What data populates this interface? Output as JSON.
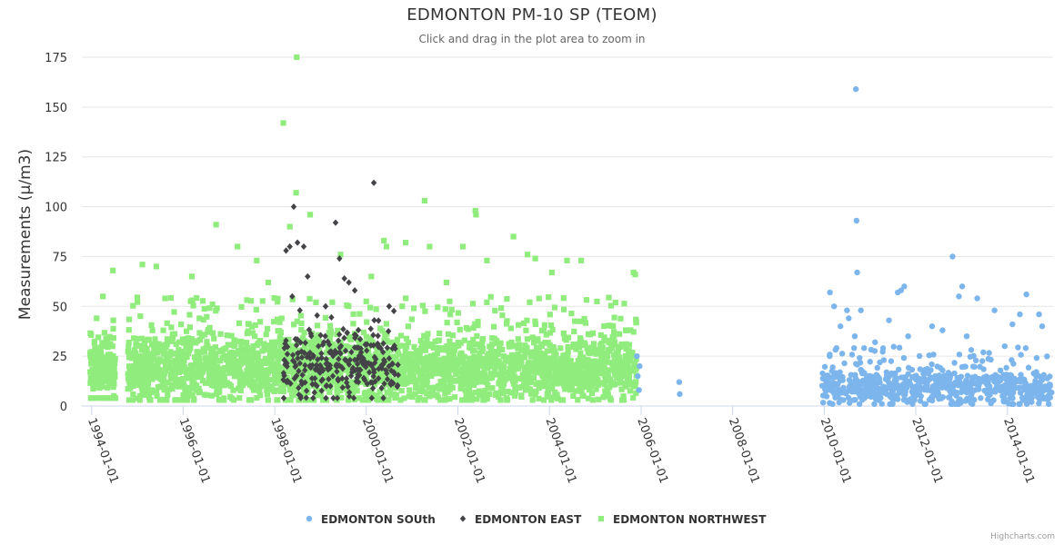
{
  "chart_data": {
    "type": "scatter",
    "title": "EDMONTON PM-10 SP (TEOM)",
    "subtitle": "Click and drag in the plot area to zoom in",
    "ylabel": "Measurements (µ/m3)",
    "xlabel": "",
    "ylim": [
      0,
      175
    ],
    "yticks": [
      0,
      25,
      50,
      75,
      100,
      125,
      150,
      175
    ],
    "xlim": [
      "1993-10-15",
      "2014-12-31"
    ],
    "xticks": [
      "1994-01-01",
      "1996-01-01",
      "1998-01-01",
      "2000-01-01",
      "2002-01-01",
      "2004-01-01",
      "2006-01-01",
      "2008-01-01",
      "2010-01-01",
      "2012-01-01",
      "2014-01-01"
    ],
    "grid": "horizontal",
    "legend_position": "bottom-center",
    "series": [
      {
        "name": "EDMONTON SOUth",
        "marker": "circle",
        "color": "#7cb5ec",
        "points": [
          [
            "2005-11-28",
            25
          ],
          [
            "2005-12-05",
            15
          ],
          [
            "2005-12-15",
            8
          ],
          [
            "2005-12-20",
            20
          ],
          [
            "2006-11-01",
            12
          ],
          [
            "2006-11-05",
            6
          ],
          [
            "2010-02-15",
            57
          ],
          [
            "2010-03-20",
            50
          ],
          [
            "2010-05-10",
            40
          ],
          [
            "2010-07-01",
            48
          ],
          [
            "2010-07-15",
            44
          ],
          [
            "2010-09-01",
            35
          ],
          [
            "2010-09-10",
            159
          ],
          [
            "2010-09-15",
            93
          ],
          [
            "2010-09-20",
            67
          ],
          [
            "2010-10-20",
            48
          ],
          [
            "2011-02-10",
            32
          ],
          [
            "2011-04-15",
            29
          ],
          [
            "2011-06-01",
            43
          ],
          [
            "2011-08-10",
            57
          ],
          [
            "2011-09-05",
            58
          ],
          [
            "2011-10-01",
            60
          ],
          [
            "2011-11-01",
            35
          ],
          [
            "2012-05-10",
            40
          ],
          [
            "2012-08-01",
            38
          ],
          [
            "2012-10-20",
            75
          ],
          [
            "2012-12-10",
            55
          ],
          [
            "2013-01-05",
            60
          ],
          [
            "2013-02-10",
            35
          ],
          [
            "2013-05-05",
            54
          ],
          [
            "2013-09-20",
            48
          ],
          [
            "2013-12-10",
            30
          ],
          [
            "2014-02-10",
            41
          ],
          [
            "2014-04-10",
            46
          ],
          [
            "2014-06-01",
            56
          ],
          [
            "2014-09-10",
            46
          ],
          [
            "2014-10-05",
            40
          ]
        ],
        "dense_ranges": [
          {
            "from": "2009-12-15",
            "to": "2014-12-25",
            "count": 700,
            "min": 1,
            "max": 30,
            "median": 9
          }
        ]
      },
      {
        "name": "EDMONTON EAST",
        "marker": "diamond",
        "color": "#434348",
        "points": [
          [
            "1998-04-01",
            78
          ],
          [
            "1998-05-01",
            80
          ],
          [
            "1998-06-01",
            100
          ],
          [
            "1998-07-01",
            82
          ],
          [
            "1998-08-20",
            80
          ],
          [
            "1998-09-20",
            65
          ],
          [
            "1999-05-01",
            92
          ],
          [
            "1999-06-01",
            74
          ],
          [
            "1999-07-10",
            64
          ],
          [
            "1999-08-15",
            62
          ],
          [
            "1999-10-01",
            58
          ],
          [
            "2000-03-01",
            112
          ],
          [
            "2000-07-01",
            50
          ],
          [
            "1998-05-20",
            55
          ],
          [
            "1998-07-20",
            48
          ],
          [
            "1999-02-10",
            50
          ]
        ],
        "dense_ranges": [
          {
            "from": "1998-03-01",
            "to": "2000-09-15",
            "count": 260,
            "min": 4,
            "max": 48,
            "median": 20
          }
        ]
      },
      {
        "name": "EDMONTON NORTHWEST",
        "marker": "square",
        "color": "#90ed7d",
        "points": [
          [
            "1994-06-20",
            68
          ],
          [
            "1994-02-10",
            44
          ],
          [
            "1994-04-01",
            55
          ],
          [
            "1995-02-10",
            71
          ],
          [
            "1995-06-01",
            70
          ],
          [
            "1995-08-10",
            54
          ],
          [
            "1996-03-10",
            65
          ],
          [
            "1996-09-20",
            91
          ],
          [
            "1997-03-10",
            80
          ],
          [
            "1997-08-10",
            73
          ],
          [
            "1998-03-10",
            142
          ],
          [
            "1998-06-25",
            175
          ],
          [
            "1998-06-20",
            107
          ],
          [
            "1998-05-01",
            90
          ],
          [
            "1998-10-10",
            96
          ],
          [
            "1999-06-10",
            76
          ],
          [
            "2000-05-20",
            83
          ],
          [
            "2000-06-10",
            80
          ],
          [
            "2000-11-10",
            82
          ],
          [
            "2001-04-10",
            103
          ],
          [
            "2001-05-20",
            80
          ],
          [
            "2002-05-20",
            98
          ],
          [
            "2002-05-25",
            96
          ],
          [
            "2002-02-10",
            80
          ],
          [
            "2002-08-20",
            73
          ],
          [
            "2003-03-20",
            85
          ],
          [
            "2003-07-10",
            76
          ],
          [
            "2003-09-10",
            74
          ],
          [
            "2004-05-20",
            73
          ],
          [
            "2004-09-10",
            73
          ],
          [
            "2005-11-01",
            67
          ],
          [
            "2005-11-15",
            66
          ],
          [
            "2000-02-10",
            65
          ],
          [
            "1997-11-10",
            62
          ],
          [
            "2001-10-01",
            62
          ],
          [
            "2004-01-20",
            67
          ]
        ],
        "dense_ranges": [
          {
            "from": "1993-12-20",
            "to": "1994-07-10",
            "count": 160,
            "min": 4,
            "max": 45,
            "median": 18
          },
          {
            "from": "1994-10-15",
            "to": "2005-11-25",
            "count": 2600,
            "min": 3,
            "max": 55,
            "median": 18
          }
        ]
      }
    ]
  },
  "credits": "Highcharts.com"
}
